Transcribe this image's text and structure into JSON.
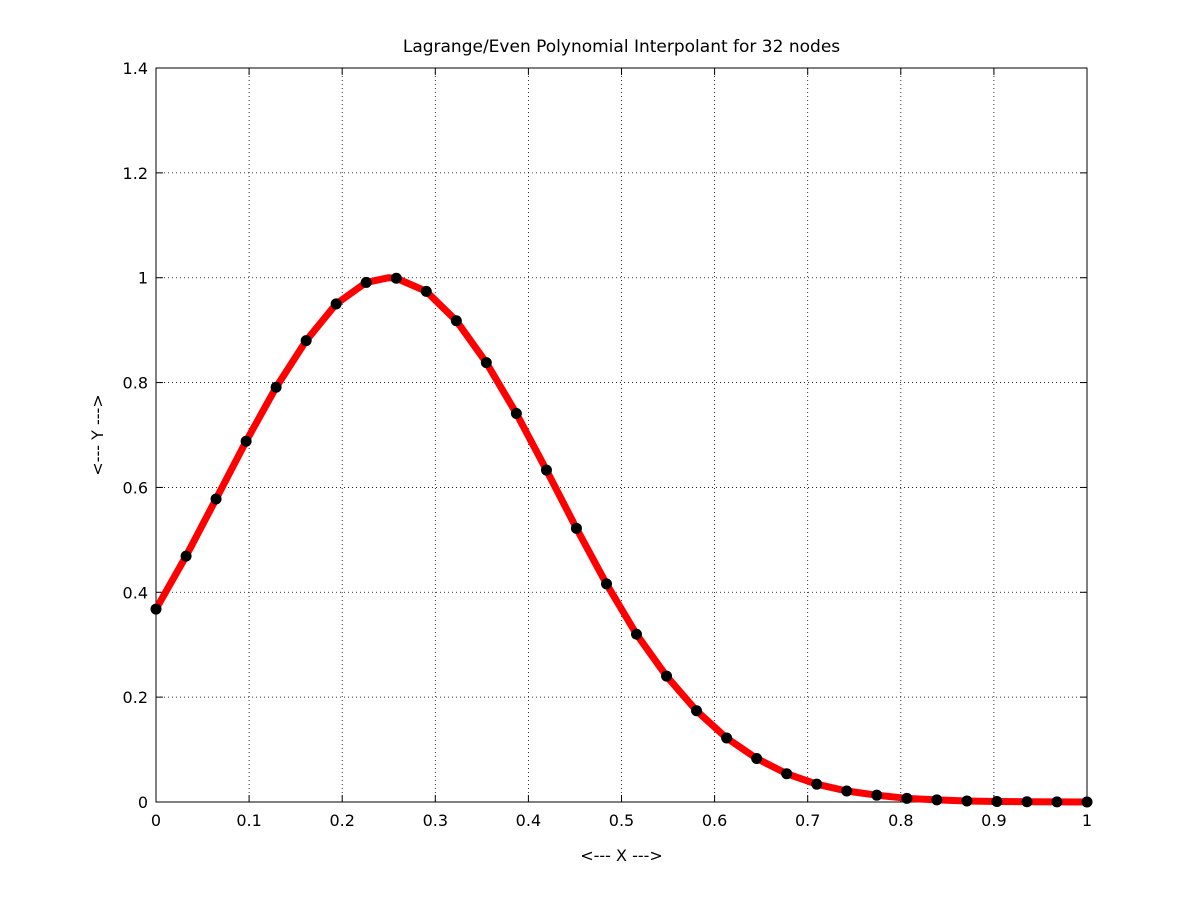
{
  "chart_data": {
    "type": "line",
    "title": "Lagrange/Even Polynomial Interpolant for 32 nodes",
    "xlabel": "<--- X --->",
    "ylabel": "<--- Y --->",
    "xlim": [
      0,
      1
    ],
    "ylim": [
      0,
      1.4
    ],
    "grid": true,
    "x_ticks": [
      0,
      0.1,
      0.2,
      0.3,
      0.4,
      0.5,
      0.6,
      0.7,
      0.8,
      0.9,
      1
    ],
    "x_tick_labels": [
      "0",
      "0.1",
      "0.2",
      "0.3",
      "0.4",
      "0.5",
      "0.6",
      "0.7",
      "0.8",
      "0.9",
      "1"
    ],
    "y_ticks": [
      0,
      0.2,
      0.4,
      0.6,
      0.8,
      1,
      1.2,
      1.4
    ],
    "y_tick_labels": [
      "0",
      "0.2",
      "0.4",
      "0.6",
      "0.8",
      "1",
      "1.2",
      "1.4"
    ],
    "series": [
      {
        "kind": "line",
        "color": "#ff0000",
        "x": [
          0,
          0.0323,
          0.0645,
          0.0968,
          0.129,
          0.1613,
          0.1935,
          0.2258,
          0.25,
          0.2581,
          0.2903,
          0.3226,
          0.3548,
          0.3871,
          0.4194,
          0.4516,
          0.4839,
          0.5161,
          0.5484,
          0.5806,
          0.6129,
          0.6452,
          0.6774,
          0.7097,
          0.7419,
          0.7742,
          0.8065,
          0.8387,
          0.871,
          0.9032,
          0.9355,
          0.9677,
          1
        ],
        "y": [
          0.368,
          0.469,
          0.578,
          0.688,
          0.791,
          0.88,
          0.95,
          0.991,
          1.0,
          0.999,
          0.974,
          0.918,
          0.838,
          0.741,
          0.633,
          0.522,
          0.416,
          0.32,
          0.24,
          0.174,
          0.122,
          0.083,
          0.054,
          0.034,
          0.021,
          0.013,
          0.007,
          0.004,
          0.002,
          0.001,
          0.0005,
          0.0002,
          0.0001
        ]
      },
      {
        "kind": "points",
        "color": "#000000",
        "x": [
          0,
          0.0323,
          0.0645,
          0.0968,
          0.129,
          0.1613,
          0.1935,
          0.2258,
          0.2581,
          0.2903,
          0.3226,
          0.3548,
          0.3871,
          0.4194,
          0.4516,
          0.4839,
          0.5161,
          0.5484,
          0.5806,
          0.6129,
          0.6452,
          0.6774,
          0.7097,
          0.7419,
          0.7742,
          0.8065,
          0.8387,
          0.871,
          0.9032,
          0.9355,
          0.9677,
          1
        ],
        "y": [
          0.368,
          0.469,
          0.578,
          0.688,
          0.791,
          0.88,
          0.95,
          0.991,
          0.999,
          0.974,
          0.918,
          0.838,
          0.741,
          0.633,
          0.522,
          0.416,
          0.32,
          0.24,
          0.174,
          0.122,
          0.083,
          0.054,
          0.034,
          0.021,
          0.013,
          0.007,
          0.004,
          0.002,
          0.001,
          0.0005,
          0.0002,
          0.0001
        ]
      }
    ]
  }
}
